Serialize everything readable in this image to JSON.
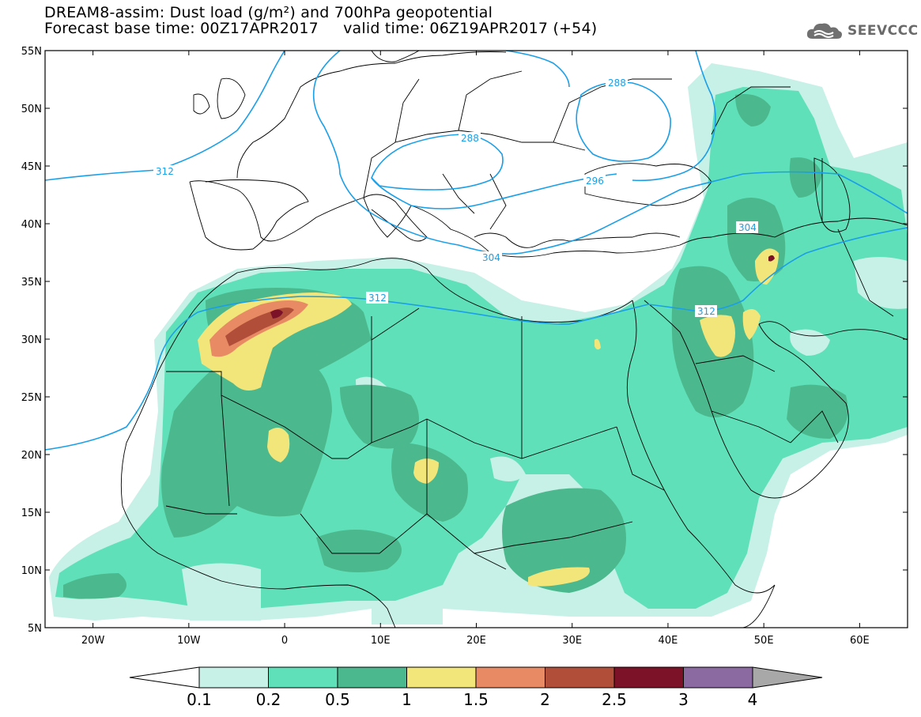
{
  "header": {
    "line1": "DREAM8-assim: Dust load (g/m²) and 700hPa geopotential",
    "line2": "Forecast base time: 00Z17APR2017     valid time: 06Z19APR2017 (+54)"
  },
  "logo": {
    "text": "SEEVCCC",
    "icon": "cloud-icon"
  },
  "map": {
    "lat_range": [
      5,
      55
    ],
    "lon_range": [
      -25,
      65
    ],
    "lat_labels": [
      "55N",
      "50N",
      "45N",
      "40N",
      "35N",
      "30N",
      "25N",
      "20N",
      "15N",
      "10N",
      "5N"
    ],
    "lon_labels": [
      "20W",
      "10W",
      "0",
      "10E",
      "20E",
      "30E",
      "40E",
      "50E",
      "60E"
    ]
  },
  "contours": {
    "labels": [
      {
        "text": "312"
      },
      {
        "text": "288"
      },
      {
        "text": "288"
      },
      {
        "text": "296"
      },
      {
        "text": "304"
      },
      {
        "text": "304"
      },
      {
        "text": "312"
      },
      {
        "text": "312"
      }
    ]
  },
  "colorbar": {
    "thresholds": [
      "0.1",
      "0.2",
      "0.5",
      "1",
      "1.5",
      "2",
      "2.5",
      "3",
      "4"
    ],
    "colors": [
      "#c7f0e6",
      "#5fe0b8",
      "#4cb88e",
      "#f2e57a",
      "#e88a63",
      "#b04e3a",
      "#7c1228",
      "#8a6aa0"
    ]
  },
  "dust_colors": {
    "l1": "#c7f0e6",
    "l2": "#5fe0b8",
    "l3": "#4cb88e",
    "l4": "#f2e57a",
    "l5": "#e88a63",
    "l6": "#b04e3a",
    "l7": "#7c1228"
  }
}
